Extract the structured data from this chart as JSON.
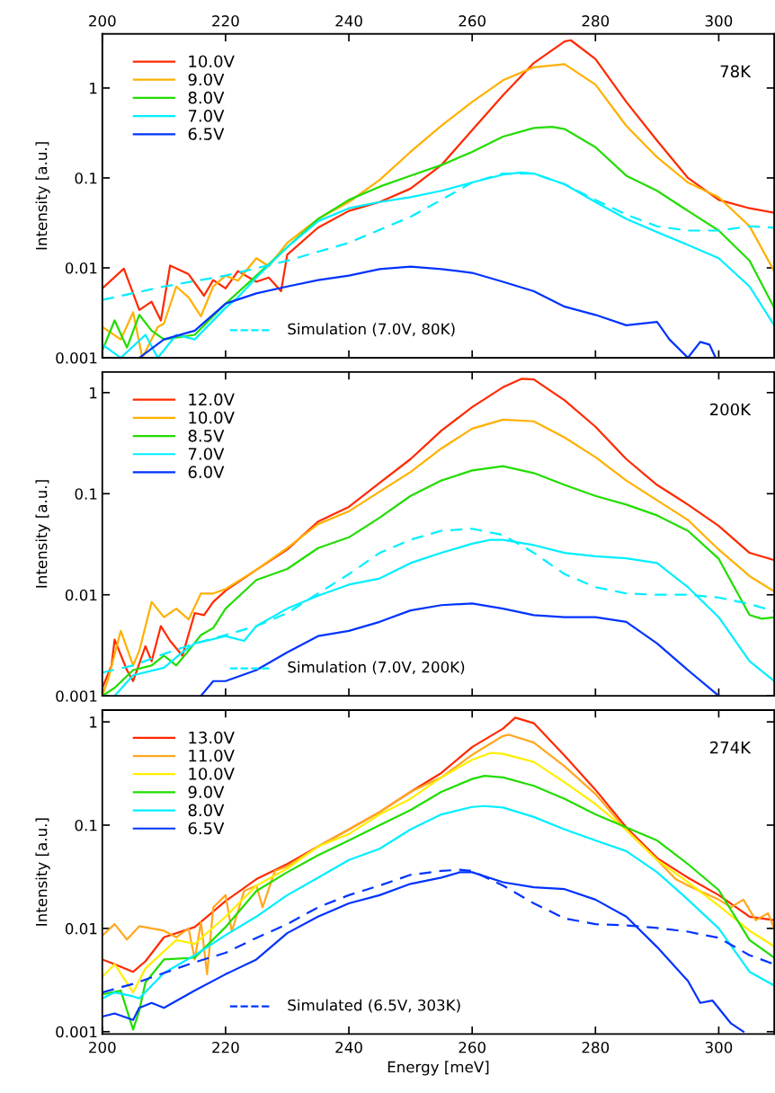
{
  "chart_data": [
    {
      "type": "line",
      "ylabel": "Intensity [a.u.]",
      "annotations": [
        "78K"
      ],
      "log": "y",
      "xlim": [
        200,
        309
      ],
      "x2lim": [
        200,
        309
      ],
      "x2ticks": [
        200,
        220,
        240,
        260,
        280,
        300
      ],
      "xticks": [
        200,
        220,
        240,
        260,
        280,
        300
      ],
      "ylim": [
        0.001,
        4
      ],
      "yticks": [
        0.001,
        0.01,
        0.1,
        1
      ],
      "tick_labels": "y",
      "grid": false,
      "legend": "left",
      "series": [
        {
          "name": "10.0V",
          "color": "#ff2a00",
          "x": [
            200,
            203.5,
            206,
            208,
            209.5,
            211,
            214,
            216.5,
            218,
            220,
            222,
            225,
            227,
            229,
            230,
            235,
            240,
            245,
            250,
            255,
            260,
            265,
            270,
            275,
            276,
            280,
            285,
            290,
            295,
            300,
            305,
            309
          ],
          "values": [
            0.0059,
            0.0098,
            0.0034,
            0.0042,
            0.0026,
            0.0106,
            0.0085,
            0.0049,
            0.0073,
            0.0059,
            0.0092,
            0.007,
            0.0078,
            0.0055,
            0.014,
            0.028,
            0.043,
            0.054,
            0.076,
            0.139,
            0.34,
            0.83,
            1.9,
            3.3,
            3.4,
            2.1,
            0.7,
            0.26,
            0.1,
            0.057,
            0.046,
            0.041
          ]
        },
        {
          "name": "9.0V",
          "color": "#ffb000",
          "x": [
            200,
            203,
            205,
            206.5,
            209,
            210,
            212,
            214,
            216,
            218,
            220,
            222,
            225,
            227,
            230,
            235,
            240,
            245,
            250,
            255,
            260,
            265,
            270,
            275,
            280,
            285,
            290,
            295,
            300,
            305,
            309
          ],
          "values": [
            0.0022,
            0.0016,
            0.0032,
            0.001,
            0.0022,
            0.0024,
            0.0062,
            0.0047,
            0.0029,
            0.0062,
            0.0082,
            0.0072,
            0.0128,
            0.0104,
            0.019,
            0.035,
            0.054,
            0.095,
            0.195,
            0.38,
            0.7,
            1.22,
            1.7,
            1.84,
            1.09,
            0.38,
            0.17,
            0.089,
            0.061,
            0.029,
            0.0092
          ]
        },
        {
          "name": "8.0V",
          "color": "#22dd00",
          "x": [
            200,
            202,
            204,
            206,
            208,
            210,
            215,
            220,
            225,
            230,
            235,
            240,
            245,
            250,
            255,
            260,
            265,
            270,
            273,
            275,
            280,
            285,
            290,
            295,
            300,
            305,
            309
          ],
          "values": [
            0.0012,
            0.0026,
            0.0013,
            0.003,
            0.002,
            0.0016,
            0.0018,
            0.004,
            0.0082,
            0.017,
            0.035,
            0.057,
            0.08,
            0.106,
            0.139,
            0.195,
            0.288,
            0.36,
            0.37,
            0.35,
            0.22,
            0.106,
            0.072,
            0.043,
            0.026,
            0.012,
            0.0036
          ]
        },
        {
          "name": "7.0V",
          "color": "#00eeff",
          "x": [
            200,
            203,
            207,
            209,
            212,
            215,
            220,
            222,
            225,
            230,
            235,
            240,
            245,
            250,
            255,
            260,
            265,
            268,
            270,
            275,
            280,
            285,
            290,
            295,
            300,
            305,
            309
          ],
          "values": [
            0.0014,
            0.001,
            0.0018,
            0.001,
            0.0018,
            0.0016,
            0.0036,
            0.0047,
            0.0078,
            0.017,
            0.033,
            0.046,
            0.054,
            0.061,
            0.072,
            0.089,
            0.109,
            0.115,
            0.112,
            0.085,
            0.054,
            0.035,
            0.025,
            0.018,
            0.0128,
            0.0062,
            0.0023
          ]
        },
        {
          "name": "6.5V",
          "color": "#0033ff",
          "x": [
            206,
            210,
            215,
            220,
            225,
            230,
            235,
            240,
            245,
            250,
            255,
            260,
            265,
            270,
            275,
            280,
            285,
            290,
            292,
            295,
            297,
            298.5,
            299.5
          ],
          "values": [
            0.001,
            0.0016,
            0.002,
            0.004,
            0.0052,
            0.0062,
            0.0073,
            0.0082,
            0.0097,
            0.0103,
            0.0097,
            0.0088,
            0.007,
            0.0055,
            0.0037,
            0.003,
            0.0023,
            0.0025,
            0.0016,
            0.001,
            0.0015,
            0.0014,
            0.001
          ]
        },
        {
          "name": "Simulation (7.0V, 80K)",
          "color": "#00eeff",
          "line_style": "dashed",
          "x": [
            200,
            210,
            220,
            230,
            240,
            250,
            255,
            260,
            265,
            270,
            275,
            280,
            285,
            290,
            295,
            300,
            305,
            309
          ],
          "values": [
            0.0044,
            0.0062,
            0.0082,
            0.012,
            0.019,
            0.037,
            0.057,
            0.089,
            0.112,
            0.112,
            0.085,
            0.057,
            0.039,
            0.029,
            0.026,
            0.026,
            0.029,
            0.028
          ]
        }
      ]
    },
    {
      "type": "line",
      "ylabel": "Intensity [a.u.]",
      "annotations": [
        "200K"
      ],
      "log": "y",
      "xlim": [
        200,
        309
      ],
      "xticks": [
        200,
        220,
        240,
        260,
        280,
        300
      ],
      "ylim": [
        0.001,
        1.6
      ],
      "yticks": [
        0.001,
        0.01,
        0.1,
        1
      ],
      "tick_labels": "y",
      "grid": false,
      "legend": "left",
      "series": [
        {
          "name": "12.0V",
          "color": "#ff2a00",
          "x": [
            200,
            201.5,
            202,
            204,
            205,
            207,
            208,
            209.5,
            211,
            213,
            215,
            216.5,
            218,
            220,
            225,
            230,
            235,
            240,
            245,
            250,
            255,
            260,
            265,
            268,
            270,
            275,
            280,
            285,
            290,
            295,
            300,
            305,
            309
          ],
          "values": [
            0.0012,
            0.002,
            0.0036,
            0.0018,
            0.0014,
            0.0031,
            0.0022,
            0.0049,
            0.0035,
            0.0025,
            0.0066,
            0.0063,
            0.0085,
            0.011,
            0.0177,
            0.028,
            0.053,
            0.074,
            0.128,
            0.22,
            0.42,
            0.72,
            1.13,
            1.37,
            1.35,
            0.84,
            0.46,
            0.22,
            0.122,
            0.078,
            0.048,
            0.026,
            0.022
          ]
        },
        {
          "name": "10.0V",
          "color": "#ffb000",
          "x": [
            200,
            201,
            203,
            205,
            206,
            208,
            210,
            212,
            214,
            216,
            218,
            220,
            225,
            230,
            235,
            240,
            245,
            250,
            255,
            260,
            265,
            270,
            275,
            280,
            285,
            290,
            295,
            300,
            305,
            309
          ],
          "values": [
            0.001,
            0.0015,
            0.0044,
            0.002,
            0.0028,
            0.0085,
            0.006,
            0.0073,
            0.0057,
            0.0103,
            0.0103,
            0.0114,
            0.0177,
            0.029,
            0.05,
            0.067,
            0.105,
            0.164,
            0.28,
            0.44,
            0.54,
            0.52,
            0.36,
            0.23,
            0.135,
            0.086,
            0.055,
            0.028,
            0.0153,
            0.0108
          ]
        },
        {
          "name": "8.5V",
          "color": "#22dd00",
          "x": [
            200,
            202,
            205,
            208,
            210,
            212,
            214,
            216,
            218,
            220,
            225,
            230,
            235,
            240,
            245,
            250,
            255,
            260,
            265,
            270,
            275,
            280,
            285,
            290,
            295,
            300,
            305,
            307,
            309
          ],
          "values": [
            0.001,
            0.0012,
            0.0018,
            0.002,
            0.0025,
            0.002,
            0.0028,
            0.004,
            0.0047,
            0.0073,
            0.014,
            0.018,
            0.029,
            0.037,
            0.058,
            0.095,
            0.135,
            0.17,
            0.187,
            0.16,
            0.122,
            0.095,
            0.078,
            0.061,
            0.043,
            0.0227,
            0.0063,
            0.0058,
            0.006
          ]
        },
        {
          "name": "7.0V",
          "color": "#00eeff",
          "x": [
            202,
            205,
            210,
            213,
            215,
            220,
            223,
            225,
            230,
            235,
            240,
            245,
            250,
            255,
            260,
            263,
            265,
            270,
            275,
            280,
            285,
            290,
            295,
            300,
            305,
            309
          ],
          "values": [
            0.001,
            0.0016,
            0.0019,
            0.0027,
            0.0033,
            0.0039,
            0.0035,
            0.0049,
            0.0073,
            0.0098,
            0.0126,
            0.0145,
            0.0206,
            0.026,
            0.032,
            0.035,
            0.035,
            0.031,
            0.026,
            0.024,
            0.023,
            0.0206,
            0.0119,
            0.006,
            0.0022,
            0.0014
          ]
        },
        {
          "name": "6.0V",
          "color": "#0033ff",
          "x": [
            216,
            218,
            220,
            225,
            230,
            235,
            240,
            245,
            250,
            255,
            260,
            265,
            270,
            275,
            280,
            285,
            290,
            295,
            300
          ],
          "values": [
            0.001,
            0.0014,
            0.0014,
            0.0018,
            0.0027,
            0.0039,
            0.0044,
            0.0054,
            0.007,
            0.0079,
            0.0082,
            0.0073,
            0.0063,
            0.006,
            0.006,
            0.0054,
            0.0033,
            0.0018,
            0.001
          ]
        },
        {
          "name": "Simulation (7.0V, 200K)",
          "color": "#00eeff",
          "line_style": "dashed",
          "x": [
            200,
            205,
            210,
            215,
            220,
            225,
            230,
            235,
            240,
            245,
            250,
            255,
            260,
            265,
            270,
            275,
            280,
            285,
            290,
            295,
            300,
            305,
            309
          ],
          "values": [
            0.0017,
            0.002,
            0.0026,
            0.0033,
            0.004,
            0.0049,
            0.0066,
            0.0103,
            0.016,
            0.026,
            0.035,
            0.043,
            0.045,
            0.039,
            0.026,
            0.016,
            0.0119,
            0.0103,
            0.01,
            0.01,
            0.0094,
            0.0081,
            0.0069
          ]
        }
      ]
    },
    {
      "type": "line",
      "xlabel": "Energy [meV]",
      "ylabel": "Intensity [a.u.]",
      "annotations": [
        "274K"
      ],
      "log": "y",
      "xlim": [
        200,
        309
      ],
      "xticks": [
        200,
        220,
        240,
        260,
        280,
        300
      ],
      "ylim": [
        0.00095,
        1.3
      ],
      "yticks": [
        0.001,
        0.01,
        0.1,
        1
      ],
      "grid": false,
      "legend": "left",
      "series": [
        {
          "name": "13.0V",
          "color": "#ff2a00",
          "x": [
            200,
            202,
            205,
            207,
            210,
            215,
            220,
            225,
            230,
            235,
            240,
            245,
            250,
            255,
            260,
            265,
            267,
            270,
            275,
            280,
            285,
            290,
            295,
            300,
            305,
            309
          ],
          "values": [
            0.005,
            0.0045,
            0.0038,
            0.0048,
            0.0082,
            0.0103,
            0.0184,
            0.03,
            0.042,
            0.062,
            0.091,
            0.134,
            0.21,
            0.32,
            0.57,
            0.86,
            1.1,
            0.97,
            0.47,
            0.22,
            0.095,
            0.048,
            0.031,
            0.021,
            0.013,
            0.012
          ]
        },
        {
          "name": "11.0V",
          "color": "#ffa820",
          "x": [
            200,
            202,
            204,
            206,
            210,
            212,
            214,
            215,
            216,
            217,
            218,
            220,
            221,
            223,
            225,
            226,
            228,
            230,
            235,
            240,
            245,
            250,
            255,
            260,
            265,
            266,
            270,
            275,
            280,
            285,
            290,
            293,
            295,
            300,
            302,
            304,
            306,
            308,
            309
          ],
          "values": [
            0.0085,
            0.011,
            0.0078,
            0.0105,
            0.0095,
            0.0082,
            0.01,
            0.005,
            0.0115,
            0.0036,
            0.016,
            0.021,
            0.0093,
            0.023,
            0.026,
            0.016,
            0.036,
            0.04,
            0.062,
            0.091,
            0.134,
            0.21,
            0.29,
            0.48,
            0.73,
            0.75,
            0.63,
            0.37,
            0.2,
            0.09,
            0.046,
            0.03,
            0.026,
            0.019,
            0.016,
            0.019,
            0.012,
            0.014,
            0.01
          ]
        },
        {
          "name": "10.0V",
          "color": "#ffee00",
          "x": [
            200,
            202,
            205,
            207,
            210,
            212,
            215,
            220,
            225,
            230,
            235,
            240,
            245,
            250,
            255,
            260,
            263,
            265,
            270,
            275,
            280,
            285,
            290,
            295,
            300,
            305,
            309
          ],
          "values": [
            0.0034,
            0.0045,
            0.0024,
            0.0041,
            0.006,
            0.0077,
            0.0071,
            0.013,
            0.026,
            0.038,
            0.062,
            0.082,
            0.127,
            0.18,
            0.29,
            0.43,
            0.5,
            0.49,
            0.41,
            0.26,
            0.16,
            0.09,
            0.046,
            0.028,
            0.0166,
            0.0095,
            0.0067
          ]
        },
        {
          "name": "9.0V",
          "color": "#22dd00",
          "x": [
            200,
            203,
            205,
            206,
            207,
            210,
            215,
            220,
            225,
            230,
            235,
            240,
            245,
            250,
            255,
            260,
            262,
            265,
            270,
            275,
            280,
            285,
            290,
            295,
            300,
            305,
            309
          ],
          "values": [
            0.0023,
            0.0025,
            0.00105,
            0.0016,
            0.003,
            0.005,
            0.0052,
            0.0103,
            0.023,
            0.035,
            0.051,
            0.071,
            0.1,
            0.14,
            0.21,
            0.28,
            0.3,
            0.29,
            0.24,
            0.18,
            0.127,
            0.095,
            0.071,
            0.042,
            0.0235,
            0.0077,
            0.0052
          ]
        },
        {
          "name": "8.0V",
          "color": "#00eeff",
          "x": [
            200,
            202,
            205,
            206,
            210,
            215,
            220,
            225,
            230,
            235,
            240,
            245,
            250,
            255,
            260,
            262,
            265,
            270,
            275,
            280,
            285,
            290,
            295,
            300,
            305,
            309
          ],
          "values": [
            0.0021,
            0.0024,
            0.0022,
            0.0021,
            0.0037,
            0.0055,
            0.0086,
            0.013,
            0.021,
            0.031,
            0.046,
            0.059,
            0.091,
            0.127,
            0.15,
            0.153,
            0.148,
            0.12,
            0.091,
            0.071,
            0.056,
            0.035,
            0.019,
            0.01,
            0.0038,
            0.0028
          ]
        },
        {
          "name": "6.5V",
          "color": "#0033ff",
          "x": [
            200,
            202,
            205,
            206,
            208,
            210,
            215,
            220,
            225,
            230,
            235,
            240,
            245,
            250,
            255,
            258,
            260,
            265,
            270,
            275,
            280,
            285,
            290,
            295,
            297,
            299,
            302,
            304
          ],
          "values": [
            0.0014,
            0.0015,
            0.0013,
            0.0017,
            0.0019,
            0.0017,
            0.0025,
            0.0036,
            0.005,
            0.009,
            0.013,
            0.0175,
            0.021,
            0.027,
            0.031,
            0.035,
            0.035,
            0.028,
            0.025,
            0.024,
            0.019,
            0.013,
            0.0066,
            0.0031,
            0.0019,
            0.002,
            0.0012,
            0.001
          ]
        },
        {
          "name": "Simulated (6.5V, 303K)",
          "color": "#0033ff",
          "line_style": "dashed",
          "x": [
            200,
            205,
            210,
            215,
            220,
            225,
            230,
            235,
            240,
            245,
            250,
            255,
            258,
            260,
            265,
            270,
            275,
            280,
            285,
            290,
            295,
            300,
            305,
            309
          ],
          "values": [
            0.0024,
            0.0029,
            0.0037,
            0.0047,
            0.0058,
            0.0081,
            0.011,
            0.016,
            0.021,
            0.026,
            0.033,
            0.036,
            0.037,
            0.036,
            0.026,
            0.0175,
            0.0125,
            0.011,
            0.0107,
            0.0101,
            0.0093,
            0.0081,
            0.0055,
            0.0045
          ]
        }
      ]
    }
  ]
}
